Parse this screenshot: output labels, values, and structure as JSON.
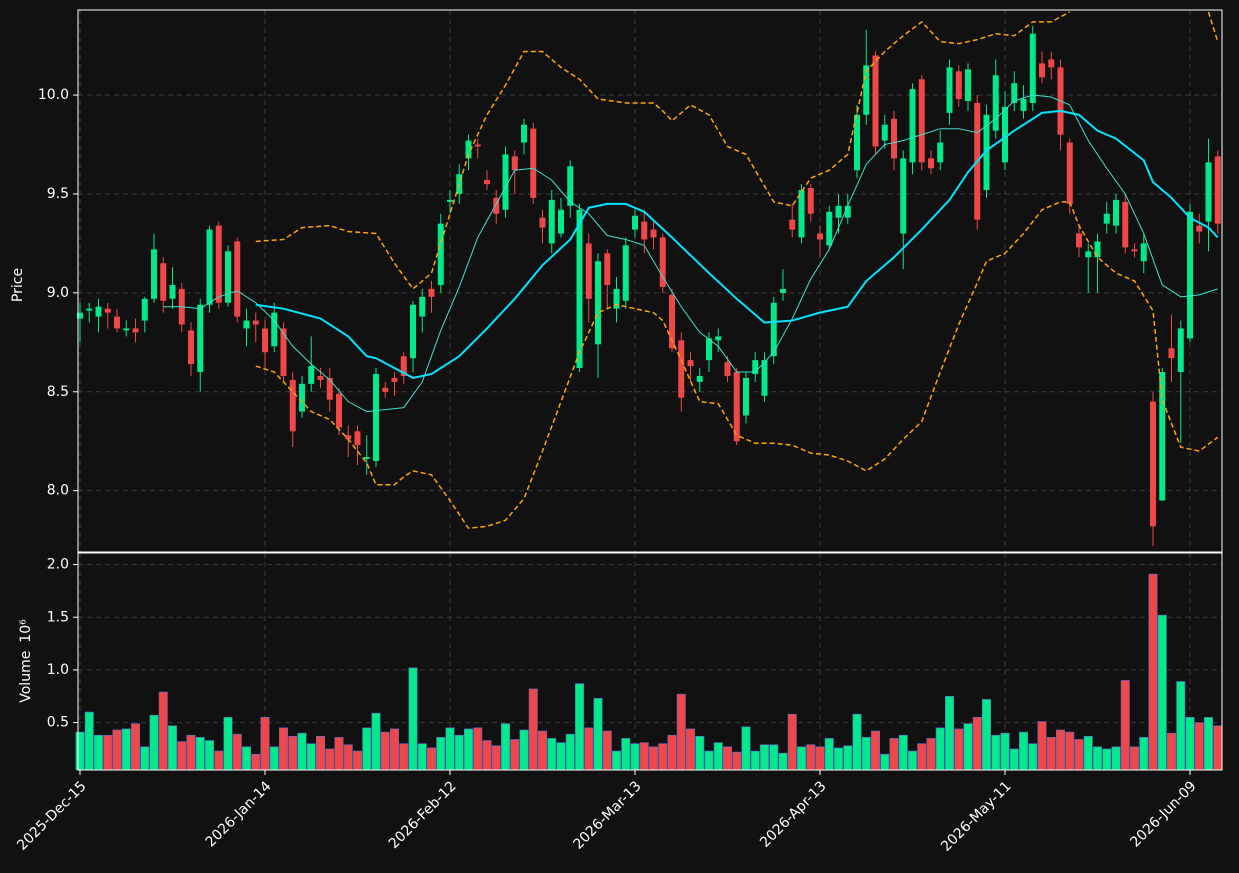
{
  "chart_data": {
    "type": "candlestick",
    "ylabel": "Price",
    "up_color": "#00e98a",
    "down_color": "#f04848",
    "grid": true,
    "ylim": [
      7.69,
      10.43
    ],
    "yticks": [
      {
        "value": 8,
        "label": "8.0"
      },
      8.5,
      {
        "value": 9,
        "label": "9.0"
      },
      9.5,
      {
        "value": 10,
        "label": "10.0"
      }
    ],
    "categories": [
      "2025-Dec-15",
      null,
      null,
      null,
      null,
      null,
      null,
      null,
      null,
      null,
      null,
      null,
      null,
      null,
      null,
      null,
      null,
      null,
      null,
      null,
      "2026-Jan-14",
      null,
      null,
      null,
      null,
      null,
      null,
      null,
      null,
      null,
      null,
      null,
      null,
      null,
      null,
      null,
      null,
      null,
      null,
      null,
      "2026-Feb-12",
      null,
      null,
      null,
      null,
      null,
      null,
      null,
      null,
      null,
      null,
      null,
      null,
      null,
      null,
      null,
      null,
      null,
      null,
      null,
      "2026-Mar-13",
      null,
      null,
      null,
      null,
      null,
      null,
      null,
      null,
      null,
      null,
      null,
      null,
      null,
      null,
      null,
      null,
      null,
      null,
      null,
      "2026-Apr-13",
      null,
      null,
      null,
      null,
      null,
      null,
      null,
      null,
      null,
      null,
      null,
      null,
      null,
      null,
      null,
      null,
      null,
      null,
      null,
      "2026-May-11",
      null,
      null,
      null,
      null,
      null,
      null,
      null,
      null,
      null,
      null,
      null,
      null,
      null,
      null,
      null,
      null,
      null,
      null,
      null,
      "2026-Jun-09",
      null,
      null,
      null
    ],
    "open": [
      8.87,
      8.91,
      8.88,
      8.92,
      8.88,
      8.81,
      8.82,
      8.86,
      8.97,
      9.15,
      8.97,
      9.02,
      8.81,
      8.6,
      8.94,
      9.34,
      8.95,
      9.26,
      8.82,
      8.86,
      8.82,
      8.73,
      8.82,
      8.56,
      8.4,
      8.54,
      8.58,
      8.57,
      8.49,
      8.28,
      8.3,
      8.16,
      8.15,
      8.52,
      8.57,
      8.68,
      8.67,
      8.88,
      9.02,
      9.04,
      9.46,
      9.5,
      9.68,
      9.75,
      9.57,
      9.48,
      9.42,
      9.69,
      9.76,
      9.83,
      9.38,
      9.25,
      9.3,
      9.44,
      8.62,
      9.25,
      8.74,
      9.2,
      8.92,
      8.96,
      9.32,
      9.36,
      9.32,
      9.28,
      8.99,
      8.76,
      8.66,
      8.55,
      8.66,
      8.76,
      8.65,
      8.6,
      8.38,
      8.59,
      8.48,
      8.68,
      9.0,
      9.37,
      9.28,
      9.53,
      9.3,
      9.24,
      9.38,
      9.38,
      9.62,
      9.9,
      10.2,
      9.77,
      9.88,
      9.3,
      9.66,
      10.08,
      9.68,
      9.66,
      9.91,
      10.12,
      9.97,
      9.96,
      9.52,
      9.82,
      9.66,
      9.96,
      9.92,
      9.96,
      10.16,
      10.18,
      10.14,
      9.76,
      9.3,
      9.18,
      9.18,
      9.35,
      9.34,
      9.46,
      9.22,
      9.16,
      8.45,
      7.95,
      8.72,
      8.6,
      8.77,
      9.34,
      9.36,
      9.69
    ],
    "high": [
      8.95,
      8.95,
      8.97,
      8.95,
      8.92,
      8.86,
      8.87,
      8.98,
      9.3,
      9.18,
      9.13,
      9.05,
      8.85,
      8.97,
      9.34,
      9.36,
      9.24,
      9.28,
      8.92,
      8.9,
      8.86,
      8.95,
      8.85,
      8.6,
      8.58,
      8.78,
      8.62,
      8.62,
      8.52,
      8.33,
      8.33,
      8.28,
      8.62,
      8.55,
      8.6,
      8.7,
      8.96,
      9.02,
      9.06,
      9.4,
      9.52,
      9.65,
      9.8,
      9.78,
      9.62,
      9.52,
      9.74,
      9.72,
      9.88,
      9.86,
      9.42,
      9.52,
      9.48,
      9.67,
      9.45,
      9.3,
      9.2,
      9.22,
      9.08,
      9.28,
      9.42,
      9.42,
      9.36,
      9.3,
      9.02,
      8.8,
      8.7,
      8.62,
      8.8,
      8.82,
      8.68,
      8.62,
      8.6,
      8.7,
      8.7,
      8.98,
      9.12,
      9.45,
      9.55,
      9.55,
      9.34,
      9.44,
      9.5,
      9.5,
      9.95,
      10.33,
      10.22,
      9.9,
      9.92,
      9.72,
      10.06,
      10.1,
      9.72,
      9.82,
      10.18,
      10.15,
      10.16,
      10.0,
      9.95,
      10.18,
      10.02,
      10.12,
      10.05,
      10.35,
      10.22,
      10.22,
      10.18,
      9.78,
      9.35,
      9.25,
      9.3,
      9.46,
      9.5,
      9.5,
      9.25,
      9.3,
      8.5,
      8.62,
      8.89,
      8.86,
      9.45,
      9.4,
      9.78,
      9.72
    ],
    "low": [
      8.75,
      8.85,
      8.8,
      8.82,
      8.8,
      8.78,
      8.75,
      8.8,
      8.95,
      8.9,
      8.92,
      8.8,
      8.58,
      8.5,
      8.9,
      8.92,
      8.93,
      8.85,
      8.73,
      8.75,
      8.62,
      8.7,
      8.55,
      8.22,
      8.37,
      8.5,
      8.52,
      8.4,
      8.28,
      8.17,
      8.13,
      8.08,
      8.12,
      8.47,
      8.48,
      8.54,
      8.6,
      8.8,
      8.9,
      9.0,
      9.4,
      9.45,
      9.62,
      9.68,
      9.52,
      9.35,
      9.38,
      9.5,
      9.7,
      9.45,
      9.25,
      9.2,
      9.28,
      9.38,
      8.6,
      8.85,
      8.57,
      8.92,
      8.85,
      8.92,
      9.28,
      9.2,
      9.22,
      9.0,
      8.7,
      8.4,
      8.55,
      8.5,
      8.6,
      8.7,
      8.55,
      8.23,
      8.34,
      8.55,
      8.45,
      8.64,
      8.96,
      9.28,
      9.25,
      9.36,
      9.18,
      9.22,
      9.3,
      9.35,
      9.58,
      9.85,
      9.7,
      9.73,
      9.62,
      9.12,
      9.6,
      9.62,
      9.6,
      9.62,
      9.85,
      9.94,
      9.92,
      9.32,
      9.48,
      9.78,
      9.62,
      9.92,
      9.88,
      9.92,
      10.06,
      10.08,
      9.72,
      9.4,
      9.18,
      9.0,
      9.0,
      9.3,
      9.3,
      9.2,
      9.18,
      9.1,
      7.72,
      7.95,
      8.55,
      8.24,
      8.75,
      9.25,
      9.21,
      9.3
    ],
    "close": [
      8.9,
      8.92,
      8.93,
      8.9,
      8.82,
      8.82,
      8.8,
      8.97,
      9.22,
      8.96,
      9.04,
      8.84,
      8.64,
      8.94,
      9.32,
      8.95,
      9.21,
      8.88,
      8.86,
      8.84,
      8.7,
      8.9,
      8.58,
      8.3,
      8.54,
      8.63,
      8.56,
      8.46,
      8.32,
      8.26,
      8.23,
      8.17,
      8.59,
      8.5,
      8.55,
      8.58,
      8.94,
      8.98,
      8.98,
      9.35,
      9.47,
      9.6,
      9.77,
      9.74,
      9.55,
      9.4,
      9.7,
      9.62,
      9.85,
      9.48,
      9.33,
      9.47,
      9.42,
      9.64,
      9.42,
      8.97,
      9.16,
      9.04,
      9.02,
      9.24,
      9.39,
      9.27,
      9.28,
      9.03,
      8.72,
      8.47,
      8.63,
      8.58,
      8.77,
      8.78,
      8.58,
      8.25,
      8.57,
      8.66,
      8.66,
      8.95,
      9.02,
      9.32,
      9.52,
      9.4,
      9.27,
      9.41,
      9.44,
      9.44,
      9.9,
      10.15,
      9.74,
      9.85,
      9.68,
      9.68,
      10.03,
      9.66,
      9.63,
      9.76,
      10.14,
      9.98,
      10.13,
      9.37,
      9.9,
      10.1,
      9.94,
      10.06,
      9.98,
      10.31,
      10.09,
      10.14,
      9.8,
      9.45,
      9.23,
      9.21,
      9.26,
      9.4,
      9.47,
      9.23,
      9.21,
      9.25,
      7.82,
      8.6,
      8.67,
      8.82,
      9.41,
      9.31,
      9.66,
      9.35
    ],
    "lines": [
      {
        "color": "#40e0d0",
        "width": 1,
        "dash": false,
        "x": [
          9,
          11,
          13,
          15,
          17,
          19,
          21,
          23,
          25,
          27,
          29,
          31,
          33,
          35,
          37,
          39,
          41,
          43,
          45,
          47,
          49,
          51,
          53,
          55,
          57,
          59,
          61,
          63,
          65,
          67,
          69,
          71,
          73,
          75,
          77,
          79,
          81,
          83,
          85,
          87,
          89,
          91,
          93,
          95,
          97,
          99,
          101,
          103,
          105,
          107,
          109,
          111,
          113,
          115,
          117,
          119,
          121,
          123
        ],
        "values": [
          8.93,
          8.93,
          8.92,
          8.98,
          9.01,
          8.95,
          8.86,
          8.73,
          8.64,
          8.56,
          8.45,
          8.4,
          8.41,
          8.42,
          8.55,
          8.81,
          9.03,
          9.28,
          9.45,
          9.62,
          9.63,
          9.57,
          9.46,
          9.4,
          9.29,
          9.27,
          9.24,
          9.08,
          8.93,
          8.8,
          8.73,
          8.6,
          8.6,
          8.7,
          8.87,
          9.07,
          9.22,
          9.44,
          9.65,
          9.75,
          9.77,
          9.8,
          9.83,
          9.83,
          9.81,
          9.88,
          9.97,
          10.0,
          9.99,
          9.95,
          9.77,
          9.63,
          9.5,
          9.3,
          9.04,
          8.98,
          8.99,
          9.02
        ]
      },
      {
        "color": "#00e5ff",
        "width": 2,
        "dash": false,
        "x": [
          19,
          22,
          26,
          29,
          31,
          32,
          36,
          38,
          41,
          44,
          47,
          50,
          53,
          55,
          57,
          59,
          61,
          64,
          68,
          71,
          74,
          77,
          80,
          83,
          85,
          88,
          91,
          94,
          96,
          98,
          101,
          104,
          106,
          108,
          110,
          112,
          115,
          116,
          118,
          120,
          122,
          123
        ],
        "values": [
          8.94,
          8.92,
          8.87,
          8.78,
          8.68,
          8.67,
          8.57,
          8.59,
          8.68,
          8.82,
          8.97,
          9.14,
          9.27,
          9.43,
          9.45,
          9.45,
          9.41,
          9.28,
          9.1,
          8.97,
          8.85,
          8.86,
          8.9,
          8.93,
          9.06,
          9.18,
          9.32,
          9.47,
          9.61,
          9.72,
          9.82,
          9.91,
          9.92,
          9.9,
          9.82,
          9.78,
          9.67,
          9.56,
          9.48,
          9.38,
          9.33,
          9.28
        ]
      },
      {
        "color": "#ffa500",
        "width": 1.5,
        "dash": true,
        "x": [
          19,
          22,
          24,
          27,
          29,
          32,
          34,
          36,
          38,
          40,
          42,
          44,
          46,
          48,
          50,
          52,
          54,
          56,
          59,
          62,
          63,
          64,
          66,
          68,
          70,
          72,
          73,
          75,
          77,
          79,
          81,
          83,
          85,
          87,
          89,
          91,
          93,
          95,
          97,
          99,
          101,
          103,
          105,
          107,
          108,
          122,
          123
        ],
        "values": [
          9.26,
          9.27,
          9.33,
          9.34,
          9.31,
          9.3,
          9.15,
          9.02,
          9.1,
          9.4,
          9.7,
          9.9,
          10.05,
          10.22,
          10.22,
          10.14,
          10.08,
          9.98,
          9.96,
          9.96,
          9.92,
          9.87,
          9.95,
          9.9,
          9.74,
          9.7,
          9.62,
          9.46,
          9.44,
          9.58,
          9.62,
          9.7,
          10.12,
          10.22,
          10.3,
          10.37,
          10.27,
          10.26,
          10.28,
          10.31,
          10.3,
          10.37,
          10.37,
          10.42,
          null,
          10.42,
          10.27
        ]
      },
      {
        "color": "#ffa500",
        "width": 1.5,
        "dash": true,
        "x": [
          19,
          21,
          23,
          25,
          27,
          29,
          31,
          32,
          34,
          35,
          36,
          38,
          40,
          42,
          44,
          46,
          48,
          50,
          52,
          54,
          56,
          58,
          60,
          62,
          63,
          65,
          67,
          69,
          71,
          73,
          75,
          77,
          79,
          81,
          83,
          85,
          87,
          89,
          91,
          93,
          95,
          97,
          98,
          100,
          102,
          104,
          106,
          107,
          108,
          110,
          112,
          114,
          116,
          117,
          119,
          121,
          123
        ],
        "values": [
          8.63,
          8.6,
          8.5,
          8.4,
          8.36,
          8.26,
          8.14,
          8.03,
          8.03,
          8.07,
          8.1,
          8.08,
          7.95,
          7.81,
          7.82,
          7.85,
          7.96,
          8.2,
          8.45,
          8.7,
          8.9,
          8.94,
          8.92,
          8.9,
          8.86,
          8.66,
          8.45,
          8.44,
          8.28,
          8.24,
          8.24,
          8.23,
          8.19,
          8.18,
          8.15,
          8.1,
          8.16,
          8.26,
          8.35,
          8.6,
          8.84,
          9.05,
          9.16,
          9.2,
          9.3,
          9.42,
          9.46,
          9.46,
          9.34,
          9.18,
          9.1,
          9.06,
          8.91,
          8.46,
          8.22,
          8.2,
          8.27
        ]
      }
    ],
    "volume": {
      "ylabel": "Volume",
      "scale": "10⁶",
      "ylim": [
        0.05,
        2.11
      ],
      "yticks": [
        0.5,
        {
          "value": 1,
          "label": "1.0"
        },
        1.5,
        {
          "value": 2,
          "label": "2.0"
        }
      ],
      "values": [
        0.41,
        0.6,
        0.38,
        0.38,
        0.43,
        0.44,
        0.49,
        0.27,
        0.57,
        0.79,
        0.47,
        0.32,
        0.38,
        0.36,
        0.33,
        0.23,
        0.55,
        0.39,
        0.27,
        0.2,
        0.55,
        0.27,
        0.45,
        0.37,
        0.4,
        0.3,
        0.37,
        0.25,
        0.36,
        0.29,
        0.23,
        0.45,
        0.59,
        0.41,
        0.44,
        0.3,
        1.02,
        0.3,
        0.26,
        0.36,
        0.45,
        0.38,
        0.44,
        0.45,
        0.33,
        0.28,
        0.49,
        0.34,
        0.43,
        0.82,
        0.42,
        0.35,
        0.31,
        0.39,
        0.87,
        0.45,
        0.73,
        0.42,
        0.23,
        0.35,
        0.3,
        0.31,
        0.27,
        0.3,
        0.38,
        0.77,
        0.44,
        0.37,
        0.23,
        0.31,
        0.27,
        0.22,
        0.46,
        0.23,
        0.29,
        0.29,
        0.21,
        0.58,
        0.27,
        0.29,
        0.27,
        0.35,
        0.26,
        0.28,
        0.58,
        0.36,
        0.42,
        0.2,
        0.35,
        0.38,
        0.23,
        0.3,
        0.35,
        0.45,
        0.75,
        0.44,
        0.49,
        0.55,
        0.72,
        0.38,
        0.4,
        0.25,
        0.41,
        0.3,
        0.51,
        0.36,
        0.43,
        0.41,
        0.34,
        0.37,
        0.27,
        0.25,
        0.27,
        0.9,
        0.27,
        0.36,
        1.91,
        1.52,
        0.4,
        0.89,
        0.55,
        0.5,
        0.55,
        0.47
      ]
    }
  }
}
